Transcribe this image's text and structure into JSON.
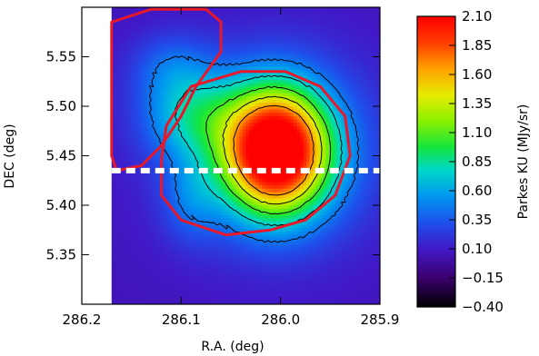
{
  "chart_data": {
    "type": "heatmap",
    "xlabel": "R.A. (deg)",
    "ylabel": "DEC (deg)",
    "xlim": [
      286.2,
      285.9
    ],
    "ylim": [
      5.3,
      5.6
    ],
    "x_ticks": [
      "286.2",
      "286.1",
      "286.0",
      "285.9"
    ],
    "x_tick_values": [
      286.2,
      286.1,
      286.0,
      285.9
    ],
    "y_ticks": [
      "5.35",
      "5.40",
      "5.45",
      "5.50",
      "5.55"
    ],
    "y_tick_values": [
      5.35,
      5.4,
      5.45,
      5.5,
      5.55
    ],
    "colorbar": {
      "label": "Parkes KU (MJy/sr)",
      "ticks": [
        "2.10",
        "1.85",
        "1.60",
        "1.35",
        "1.10",
        "0.85",
        "0.60",
        "0.35",
        "0.10",
        "−0.15",
        "−0.40"
      ],
      "tick_values": [
        2.1,
        1.85,
        1.6,
        1.35,
        1.1,
        0.85,
        0.6,
        0.35,
        0.1,
        -0.15,
        -0.4
      ],
      "min": -0.4,
      "max": 2.1
    },
    "peak": {
      "ra": 286.005,
      "dec": 5.455,
      "value": 2.1
    },
    "secondary_emission": {
      "ra": 286.09,
      "dec": 5.49,
      "value": 0.5
    },
    "regions": [
      {
        "name": "northwest region",
        "color": "#e8182a",
        "ra": [
          286.17,
          286.13,
          286.075,
          286.06,
          286.06,
          286.085,
          286.1,
          286.12,
          286.14,
          286.165,
          286.17,
          286.17
        ],
        "dec": [
          5.585,
          5.598,
          5.598,
          5.585,
          5.555,
          5.52,
          5.49,
          5.46,
          5.44,
          5.435,
          5.45,
          5.585
        ]
      },
      {
        "name": "source region",
        "color": "#e8182a",
        "ra": [
          286.115,
          286.09,
          286.04,
          285.995,
          285.96,
          285.935,
          285.93,
          285.945,
          285.975,
          286.01,
          286.055,
          286.1,
          286.12,
          286.12,
          286.115
        ],
        "dec": [
          5.48,
          5.52,
          5.535,
          5.535,
          5.52,
          5.49,
          5.45,
          5.41,
          5.385,
          5.375,
          5.37,
          5.385,
          5.41,
          5.445,
          5.48
        ]
      }
    ],
    "cut_line": {
      "dec": 5.435,
      "color": "#ffffff",
      "style": "dashed"
    },
    "contour_levels": [
      0.45,
      0.75,
      1.05,
      1.35,
      1.65
    ],
    "contour_color": "#000000",
    "colormap": "rainbow"
  }
}
